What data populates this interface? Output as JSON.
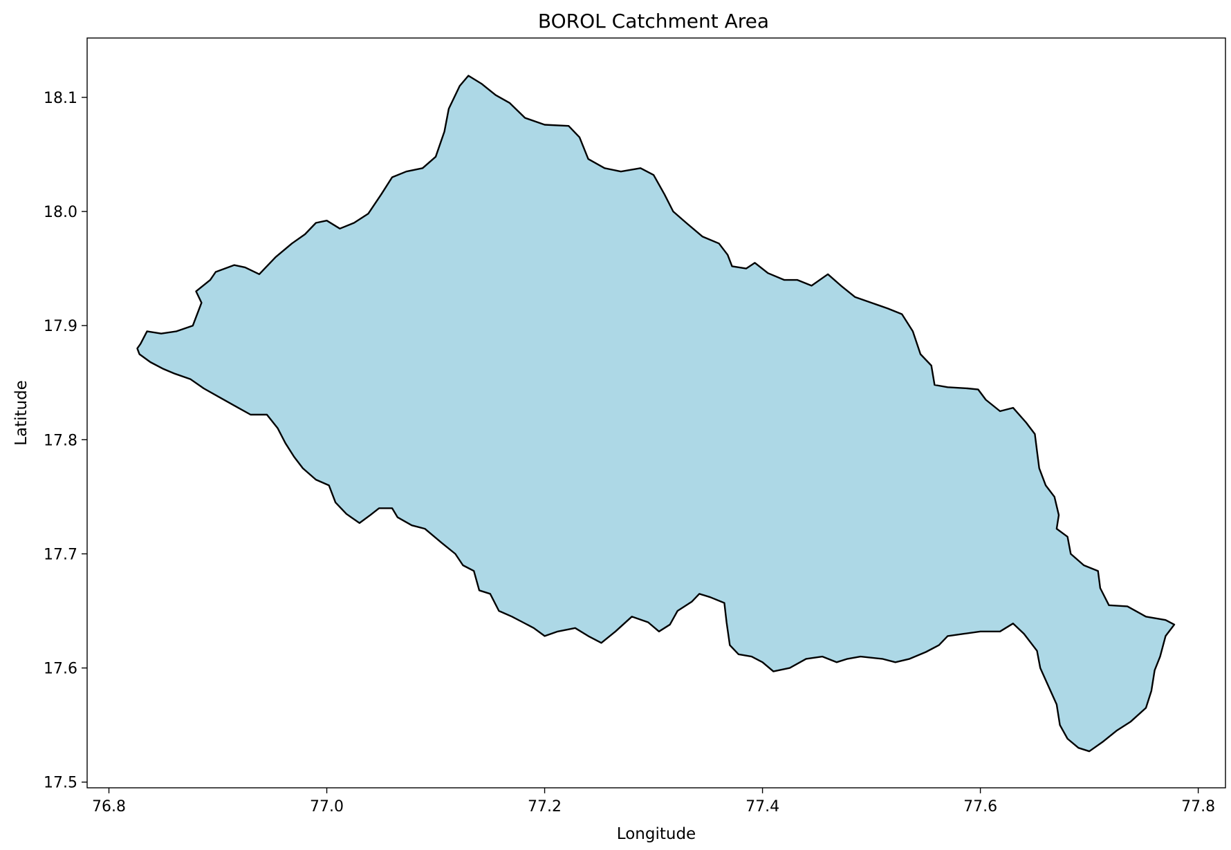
{
  "chart_data": {
    "type": "map",
    "title": "BOROL Catchment Area",
    "xlabel": "Longitude",
    "ylabel": "Latitude",
    "xlim": [
      76.78,
      77.825
    ],
    "ylim": [
      17.495,
      18.152
    ],
    "xticks": [
      76.8,
      77.0,
      77.2,
      77.4,
      77.6,
      77.8
    ],
    "xtick_labels": [
      "76.8",
      "77.0",
      "77.2",
      "77.4",
      "77.6",
      "77.8"
    ],
    "yticks": [
      17.5,
      17.6,
      17.7,
      17.8,
      17.9,
      18.0,
      18.1
    ],
    "ytick_labels": [
      "17.5",
      "17.6",
      "17.7",
      "17.8",
      "17.9",
      "18.0",
      "18.1"
    ],
    "grid": false,
    "fill_color": "#add8e6",
    "edge_color": "#000000",
    "boundary": [
      [
        76.826,
        17.88
      ],
      [
        76.829,
        17.884
      ],
      [
        76.835,
        17.895
      ],
      [
        76.848,
        17.893
      ],
      [
        76.862,
        17.895
      ],
      [
        76.877,
        17.9
      ],
      [
        76.885,
        17.92
      ],
      [
        76.88,
        17.93
      ],
      [
        76.893,
        17.94
      ],
      [
        76.898,
        17.947
      ],
      [
        76.915,
        17.953
      ],
      [
        76.925,
        17.951
      ],
      [
        76.938,
        17.945
      ],
      [
        76.953,
        17.96
      ],
      [
        76.968,
        17.972
      ],
      [
        76.98,
        17.98
      ],
      [
        76.99,
        17.99
      ],
      [
        77.0,
        17.992
      ],
      [
        77.012,
        17.985
      ],
      [
        77.025,
        17.99
      ],
      [
        77.038,
        17.998
      ],
      [
        77.05,
        18.015
      ],
      [
        77.06,
        18.03
      ],
      [
        77.073,
        18.035
      ],
      [
        77.088,
        18.038
      ],
      [
        77.1,
        18.048
      ],
      [
        77.108,
        18.07
      ],
      [
        77.112,
        18.09
      ],
      [
        77.122,
        18.11
      ],
      [
        77.13,
        18.119
      ],
      [
        77.142,
        18.112
      ],
      [
        77.155,
        18.102
      ],
      [
        77.168,
        18.095
      ],
      [
        77.182,
        18.082
      ],
      [
        77.2,
        18.076
      ],
      [
        77.222,
        18.075
      ],
      [
        77.232,
        18.065
      ],
      [
        77.24,
        18.046
      ],
      [
        77.255,
        18.038
      ],
      [
        77.27,
        18.035
      ],
      [
        77.288,
        18.038
      ],
      [
        77.3,
        18.032
      ],
      [
        77.31,
        18.015
      ],
      [
        77.318,
        18.0
      ],
      [
        77.33,
        17.99
      ],
      [
        77.345,
        17.978
      ],
      [
        77.36,
        17.972
      ],
      [
        77.368,
        17.962
      ],
      [
        77.372,
        17.952
      ],
      [
        77.385,
        17.95
      ],
      [
        77.393,
        17.955
      ],
      [
        77.405,
        17.946
      ],
      [
        77.42,
        17.94
      ],
      [
        77.432,
        17.94
      ],
      [
        77.445,
        17.935
      ],
      [
        77.46,
        17.945
      ],
      [
        77.472,
        17.935
      ],
      [
        77.485,
        17.925
      ],
      [
        77.5,
        17.92
      ],
      [
        77.515,
        17.915
      ],
      [
        77.528,
        17.91
      ],
      [
        77.538,
        17.895
      ],
      [
        77.545,
        17.875
      ],
      [
        77.555,
        17.865
      ],
      [
        77.558,
        17.848
      ],
      [
        77.57,
        17.846
      ],
      [
        77.588,
        17.845
      ],
      [
        77.598,
        17.844
      ],
      [
        77.605,
        17.835
      ],
      [
        77.618,
        17.825
      ],
      [
        77.63,
        17.828
      ],
      [
        77.642,
        17.815
      ],
      [
        77.65,
        17.805
      ],
      [
        77.652,
        17.79
      ],
      [
        77.654,
        17.775
      ],
      [
        77.66,
        17.76
      ],
      [
        77.668,
        17.75
      ],
      [
        77.672,
        17.734
      ],
      [
        77.67,
        17.722
      ],
      [
        77.68,
        17.715
      ],
      [
        77.683,
        17.7
      ],
      [
        77.695,
        17.69
      ],
      [
        77.708,
        17.685
      ],
      [
        77.71,
        17.67
      ],
      [
        77.718,
        17.655
      ],
      [
        77.735,
        17.654
      ],
      [
        77.752,
        17.645
      ],
      [
        77.77,
        17.642
      ],
      [
        77.778,
        17.638
      ],
      [
        77.77,
        17.628
      ],
      [
        77.765,
        17.61
      ],
      [
        77.76,
        17.598
      ],
      [
        77.757,
        17.58
      ],
      [
        77.752,
        17.565
      ],
      [
        77.738,
        17.553
      ],
      [
        77.725,
        17.545
      ],
      [
        77.712,
        17.535
      ],
      [
        77.7,
        17.527
      ],
      [
        77.69,
        17.53
      ],
      [
        77.68,
        17.538
      ],
      [
        77.673,
        17.55
      ],
      [
        77.67,
        17.568
      ],
      [
        77.662,
        17.585
      ],
      [
        77.655,
        17.6
      ],
      [
        77.652,
        17.615
      ],
      [
        77.64,
        17.63
      ],
      [
        77.63,
        17.639
      ],
      [
        77.618,
        17.632
      ],
      [
        77.6,
        17.632
      ],
      [
        77.585,
        17.63
      ],
      [
        77.57,
        17.628
      ],
      [
        77.562,
        17.62
      ],
      [
        77.55,
        17.614
      ],
      [
        77.535,
        17.608
      ],
      [
        77.522,
        17.605
      ],
      [
        77.51,
        17.608
      ],
      [
        77.49,
        17.61
      ],
      [
        77.478,
        17.608
      ],
      [
        77.468,
        17.605
      ],
      [
        77.455,
        17.61
      ],
      [
        77.44,
        17.608
      ],
      [
        77.425,
        17.6
      ],
      [
        77.41,
        17.597
      ],
      [
        77.4,
        17.605
      ],
      [
        77.39,
        17.61
      ],
      [
        77.378,
        17.612
      ],
      [
        77.37,
        17.62
      ],
      [
        77.367,
        17.64
      ],
      [
        77.365,
        17.657
      ],
      [
        77.352,
        17.662
      ],
      [
        77.342,
        17.665
      ],
      [
        77.335,
        17.658
      ],
      [
        77.322,
        17.65
      ],
      [
        77.315,
        17.638
      ],
      [
        77.305,
        17.632
      ],
      [
        77.295,
        17.64
      ],
      [
        77.28,
        17.645
      ],
      [
        77.265,
        17.632
      ],
      [
        77.252,
        17.622
      ],
      [
        77.24,
        17.628
      ],
      [
        77.228,
        17.635
      ],
      [
        77.212,
        17.632
      ],
      [
        77.2,
        17.628
      ],
      [
        77.19,
        17.635
      ],
      [
        77.18,
        17.64
      ],
      [
        77.17,
        17.645
      ],
      [
        77.158,
        17.65
      ],
      [
        77.15,
        17.665
      ],
      [
        77.14,
        17.668
      ],
      [
        77.135,
        17.685
      ],
      [
        77.125,
        17.69
      ],
      [
        77.118,
        17.7
      ],
      [
        77.105,
        17.71
      ],
      [
        77.09,
        17.722
      ],
      [
        77.078,
        17.725
      ],
      [
        77.065,
        17.732
      ],
      [
        77.06,
        17.74
      ],
      [
        77.048,
        17.74
      ],
      [
        77.04,
        17.734
      ],
      [
        77.03,
        17.727
      ],
      [
        77.018,
        17.735
      ],
      [
        77.008,
        17.745
      ],
      [
        77.002,
        17.76
      ],
      [
        76.99,
        17.765
      ],
      [
        76.978,
        17.775
      ],
      [
        76.97,
        17.785
      ],
      [
        76.962,
        17.797
      ],
      [
        76.955,
        17.81
      ],
      [
        76.945,
        17.822
      ],
      [
        76.93,
        17.822
      ],
      [
        76.915,
        17.83
      ],
      [
        76.9,
        17.838
      ],
      [
        76.887,
        17.845
      ],
      [
        76.875,
        17.853
      ],
      [
        76.86,
        17.858
      ],
      [
        76.85,
        17.862
      ],
      [
        76.838,
        17.868
      ],
      [
        76.828,
        17.875
      ],
      [
        76.826,
        17.88
      ]
    ]
  }
}
